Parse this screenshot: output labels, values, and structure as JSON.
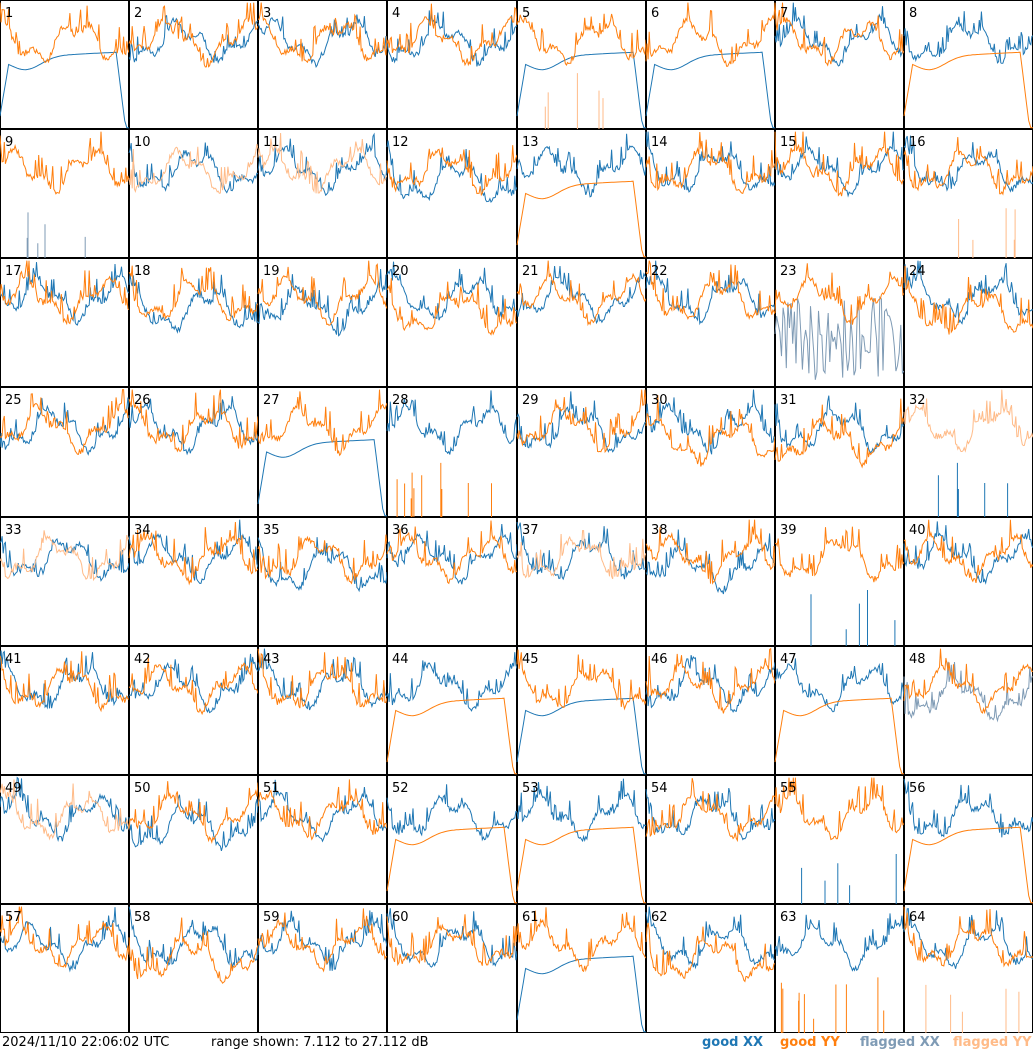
{
  "chart_data": {
    "type": "line",
    "layout": "small-multiples 8x8",
    "panels": [
      1,
      2,
      3,
      4,
      5,
      6,
      7,
      8,
      9,
      10,
      11,
      12,
      13,
      14,
      15,
      16,
      17,
      18,
      19,
      20,
      21,
      22,
      23,
      24,
      25,
      26,
      27,
      28,
      29,
      30,
      31,
      32,
      33,
      34,
      35,
      36,
      37,
      38,
      39,
      40,
      41,
      42,
      43,
      44,
      45,
      46,
      47,
      48,
      49,
      50,
      51,
      52,
      53,
      54,
      55,
      56,
      57,
      58,
      59,
      60,
      61,
      62,
      63,
      64
    ],
    "range_db": [
      7.112,
      27.112
    ],
    "series": [
      {
        "name": "good XX",
        "color": "#1f77b4"
      },
      {
        "name": "good YY",
        "color": "#ff7f0e"
      },
      {
        "name": "flagged XX",
        "color": "#7f9bb5"
      },
      {
        "name": "flagged YY",
        "color": "#ffbb88"
      }
    ]
  },
  "footer": {
    "timestamp": "2024/11/10 22:06:02 UTC",
    "range_text": "range shown: 7.112 to 27.112 dB"
  },
  "legend": {
    "good": "good",
    "flagged": "flagged",
    "xx": "XX",
    "yy": "YY"
  }
}
